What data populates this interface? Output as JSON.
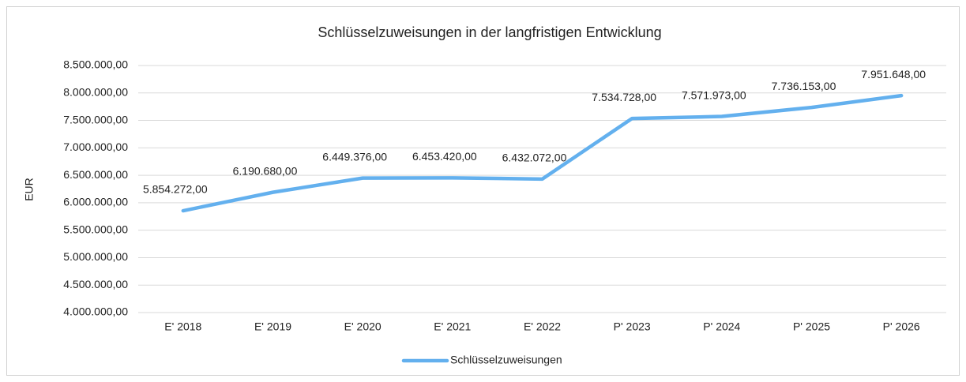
{
  "chart_data": {
    "type": "line",
    "title": "Schlüsselzuweisungen in der langfristigen Entwicklung",
    "y_label": "EUR",
    "categories": [
      "E' 2018",
      "E' 2019",
      "E' 2020",
      "E' 2021",
      "E' 2022",
      "P' 2023",
      "P' 2024",
      "P' 2025",
      "P' 2026"
    ],
    "series": [
      {
        "name": "Schlüsselzuweisungen",
        "color": "#63b0ee",
        "values": [
          5854272,
          6190680,
          6449376,
          6453420,
          6432072,
          7534728,
          7571973,
          7736153,
          7951648
        ],
        "value_labels": [
          "5.854.272,00",
          "6.190.680,00",
          "6.449.376,00",
          "6.453.420,00",
          "6.432.072,00",
          "7.534.728,00",
          "7.571.973,00",
          "7.736.153,00",
          "7.951.648,00"
        ]
      }
    ],
    "ylim": [
      4000000,
      8500000
    ],
    "yticks": [
      {
        "value": 4000000,
        "label": "4.000.000,00"
      },
      {
        "value": 4500000,
        "label": "4.500.000,00"
      },
      {
        "value": 5000000,
        "label": "5.000.000,00"
      },
      {
        "value": 5500000,
        "label": "5.500.000,00"
      },
      {
        "value": 6000000,
        "label": "6.000.000,00"
      },
      {
        "value": 6500000,
        "label": "6.500.000,00"
      },
      {
        "value": 7000000,
        "label": "7.000.000,00"
      },
      {
        "value": 7500000,
        "label": "7.500.000,00"
      },
      {
        "value": 8000000,
        "label": "8.000.000,00"
      },
      {
        "value": 8500000,
        "label": "8.500.000,00"
      }
    ],
    "grid": true,
    "legend": "bottom"
  }
}
